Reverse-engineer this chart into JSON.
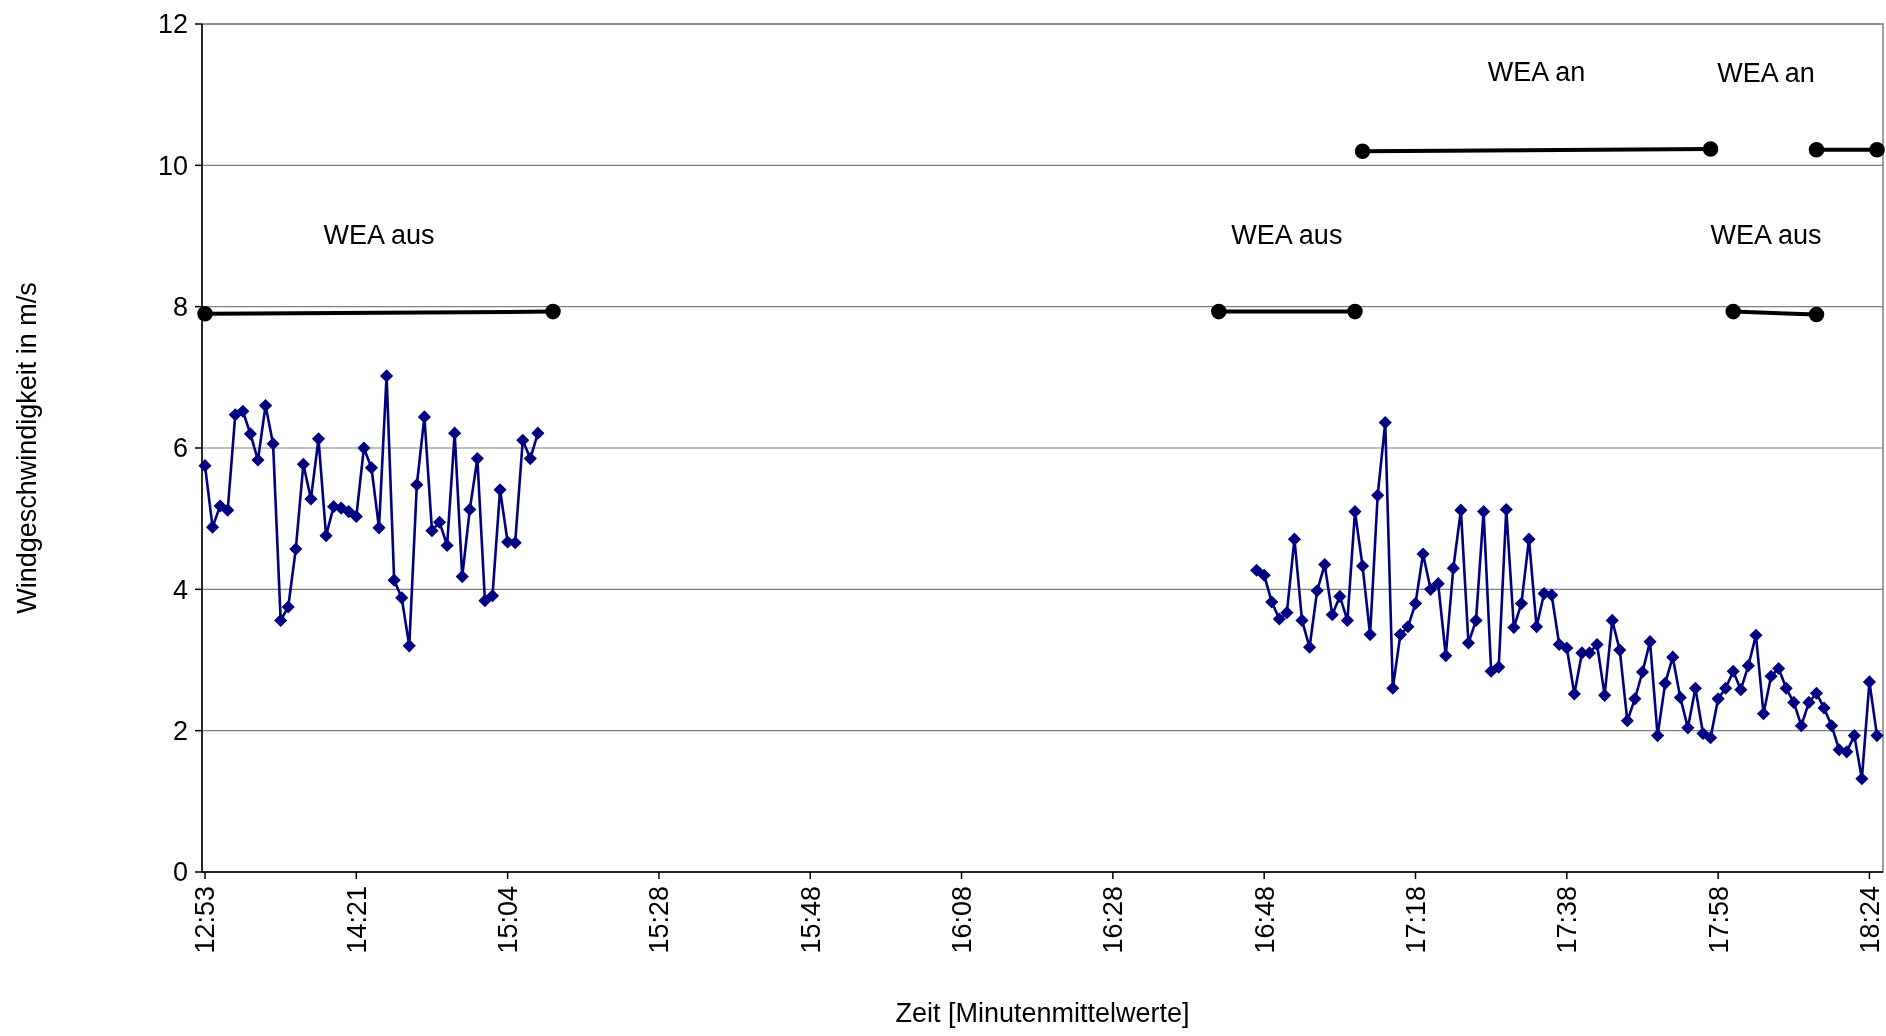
{
  "chart_data": {
    "type": "line",
    "xlabel": "Zeit [Minutenmittelwerte]",
    "ylabel": "Windgeschwindigkeit in m/s",
    "ylim": [
      0,
      12
    ],
    "yticks": [
      0,
      2,
      4,
      6,
      8,
      10,
      12
    ],
    "grid": "y",
    "categories": [
      "12:53",
      null,
      null,
      null,
      null,
      null,
      null,
      null,
      null,
      null,
      null,
      null,
      null,
      null,
      null,
      null,
      null,
      null,
      null,
      null,
      "14:21",
      null,
      null,
      null,
      null,
      null,
      null,
      null,
      null,
      null,
      null,
      null,
      null,
      null,
      null,
      null,
      null,
      null,
      null,
      null,
      "15:04",
      null,
      null,
      null,
      null,
      null,
      null,
      null,
      null,
      null,
      null,
      null,
      null,
      null,
      null,
      null,
      null,
      null,
      null,
      null,
      "15:28",
      null,
      null,
      null,
      null,
      null,
      null,
      null,
      null,
      null,
      null,
      null,
      null,
      null,
      null,
      null,
      null,
      null,
      null,
      null,
      "15:48",
      null,
      null,
      null,
      null,
      null,
      null,
      null,
      null,
      null,
      null,
      null,
      null,
      null,
      null,
      null,
      null,
      null,
      null,
      null,
      "16:08",
      null,
      null,
      null,
      null,
      null,
      null,
      null,
      null,
      null,
      null,
      null,
      null,
      null,
      null,
      null,
      null,
      null,
      null,
      null,
      "16:28",
      null,
      null,
      null,
      null,
      null,
      null,
      null,
      null,
      null,
      null,
      null,
      null,
      null,
      null,
      null,
      null,
      null,
      null,
      null,
      "16:48",
      null,
      null,
      null,
      null,
      null,
      null,
      null,
      null,
      null,
      null,
      null,
      null,
      null,
      null,
      null,
      null,
      null,
      null,
      null,
      "17:18",
      null,
      null,
      null,
      null,
      null,
      null,
      null,
      null,
      null,
      null,
      null,
      null,
      null,
      null,
      null,
      null,
      null,
      null,
      null,
      "17:38",
      null,
      null,
      null,
      null,
      null,
      null,
      null,
      null,
      null,
      null,
      null,
      null,
      null,
      null,
      null,
      null,
      null,
      null,
      null,
      "17:58",
      null,
      null,
      null,
      null,
      null,
      null,
      null,
      null,
      null,
      null,
      null,
      null,
      null,
      null,
      null,
      null,
      null,
      null,
      null,
      "18:24",
      null
    ],
    "series": [
      {
        "color": "#000080",
        "marker": "diamond",
        "values": [
          5.75,
          4.88,
          5.18,
          5.12,
          6.47,
          6.52,
          6.2,
          5.83,
          6.6,
          6.06,
          3.56,
          3.75,
          4.57,
          5.77,
          5.28,
          6.13,
          4.76,
          5.17,
          5.15,
          5.1,
          5.03,
          6.0,
          5.72,
          4.87,
          7.02,
          4.13,
          3.88,
          3.2,
          5.48,
          6.44,
          4.83,
          4.95,
          4.62,
          6.21,
          4.18,
          5.13,
          5.85,
          3.84,
          3.91,
          5.41,
          4.67,
          4.66,
          6.11,
          5.85,
          6.21,
          null,
          null,
          null,
          null,
          null,
          null,
          null,
          null,
          null,
          null,
          null,
          null,
          null,
          null,
          null,
          null,
          null,
          null,
          null,
          null,
          null,
          null,
          null,
          null,
          null,
          null,
          null,
          null,
          null,
          null,
          null,
          null,
          null,
          null,
          null,
          null,
          null,
          null,
          null,
          null,
          null,
          null,
          null,
          null,
          null,
          null,
          null,
          null,
          null,
          null,
          null,
          null,
          null,
          null,
          null,
          null,
          null,
          null,
          null,
          null,
          null,
          null,
          null,
          null,
          null,
          null,
          null,
          null,
          null,
          null,
          null,
          null,
          null,
          null,
          null,
          null,
          null,
          null,
          null,
          null,
          null,
          null,
          null,
          null,
          null,
          null,
          null,
          null,
          null,
          null,
          null,
          null,
          null,
          null,
          null,
          null,
          null,
          null,
          null,
          null,
          null,
          null,
          null,
          null,
          null,
          null,
          null,
          null,
          null,
          null,
          null,
          null,
          null,
          null,
          null,
          null,
          null,
          null,
          null,
          null,
          null,
          null,
          null,
          null,
          null,
          null,
          null,
          null,
          null,
          null,
          null,
          null,
          null,
          null,
          null,
          null,
          null,
          null,
          null,
          null,
          null,
          null,
          null,
          null,
          null,
          null,
          null,
          null,
          null,
          null,
          null,
          null,
          null,
          null,
          null,
          null,
          null,
          null,
          null,
          null,
          null,
          null,
          null,
          null,
          null,
          null,
          null,
          null,
          null,
          null,
          null,
          null,
          null,
          null,
          null,
          null,
          null
        ]
      },
      {
        "color": "#000080",
        "marker": "diamond",
        "values": [
          null,
          null,
          null,
          null,
          null,
          null,
          null,
          null,
          null,
          null,
          null,
          null,
          null,
          null,
          null,
          null,
          null,
          null,
          null,
          null,
          null,
          null,
          null,
          null,
          null,
          null,
          null,
          null,
          null,
          null,
          null,
          null,
          null,
          null,
          null,
          null,
          null,
          null,
          null,
          null,
          null,
          null,
          null,
          null,
          null,
          null,
          null,
          null,
          null,
          null,
          null,
          null,
          null,
          null,
          null,
          null,
          null,
          null,
          null,
          null,
          null,
          null,
          null,
          null,
          null,
          null,
          null,
          null,
          null,
          null,
          null,
          null,
          null,
          null,
          null,
          null,
          null,
          null,
          null,
          null,
          null,
          null,
          null,
          null,
          null,
          null,
          null,
          null,
          null,
          null,
          null,
          null,
          null,
          null,
          null,
          null,
          null,
          null,
          null,
          null,
          null,
          null,
          null,
          null,
          null,
          null,
          null,
          null,
          null,
          null,
          null,
          null,
          null,
          null,
          null,
          null,
          null,
          null,
          null,
          null,
          null,
          null,
          null,
          null,
          null,
          null,
          null,
          null,
          null,
          null,
          null,
          null,
          null,
          null,
          null,
          null,
          null,
          null,
          null,
          4.27,
          4.2,
          3.82,
          3.58,
          3.67,
          4.71,
          3.56,
          3.18,
          3.98,
          4.35,
          3.64,
          3.9,
          3.56,
          5.1,
          4.33,
          3.36,
          5.33,
          6.36,
          2.6,
          3.36,
          3.47,
          3.8,
          4.5,
          4.0,
          4.08,
          3.06,
          4.3,
          5.12,
          3.24,
          3.56,
          5.1,
          2.84,
          2.9,
          5.13,
          3.46,
          3.8,
          4.71,
          3.47,
          3.94,
          3.92,
          3.22,
          3.17,
          2.52,
          3.1,
          3.1,
          3.22,
          2.5,
          3.56,
          3.14,
          2.14,
          2.45,
          2.83,
          3.26,
          1.93,
          2.67,
          3.04,
          2.47,
          2.04,
          2.6,
          1.96,
          1.9,
          2.45,
          2.6,
          2.84,
          2.58,
          2.92,
          3.35,
          2.24,
          2.77,
          2.88,
          2.6,
          2.4,
          2.07,
          2.4,
          2.53,
          2.32,
          2.07,
          1.73,
          1.7,
          1.93,
          1.32,
          2.69,
          1.93
        ]
      },
      {
        "name": "WEA aus",
        "color": "#000000",
        "marker": "circle",
        "values": [
          7.9,
          null,
          null,
          null,
          null,
          null,
          null,
          null,
          null,
          null,
          null,
          null,
          null,
          null,
          null,
          null,
          null,
          null,
          null,
          null,
          null,
          null,
          null,
          null,
          null,
          null,
          null,
          null,
          null,
          null,
          null,
          null,
          null,
          null,
          null,
          null,
          null,
          null,
          null,
          null,
          null,
          null,
          null,
          null,
          null,
          null,
          7.93,
          null,
          null,
          null,
          null,
          null,
          null,
          null,
          null,
          null,
          null,
          null,
          null,
          null,
          null,
          null,
          null,
          null,
          null,
          null,
          null,
          null,
          null,
          null,
          null,
          null,
          null,
          null,
          null,
          null,
          null,
          null,
          null,
          null,
          null,
          null,
          null,
          null,
          null,
          null,
          null,
          null,
          null,
          null,
          null,
          null,
          null,
          null,
          null,
          null,
          null,
          null,
          null,
          null,
          null,
          null,
          null,
          null,
          null,
          null,
          null,
          null,
          null,
          null,
          null,
          null,
          null,
          null,
          null,
          null,
          null,
          null,
          null,
          null,
          null,
          null,
          null,
          null,
          null,
          null,
          null,
          null,
          null,
          null,
          null,
          null,
          null,
          null,
          null,
          null,
          null,
          null,
          null,
          null,
          null,
          null,
          null,
          null,
          null,
          null,
          null,
          null,
          null,
          null,
          null,
          null,
          null,
          null,
          null,
          null,
          null,
          null,
          null,
          null,
          null,
          null,
          null,
          null,
          null,
          null,
          null,
          null,
          null,
          null,
          null,
          null,
          null,
          null,
          null,
          null,
          null,
          null,
          null,
          null,
          null,
          null,
          null,
          null,
          null,
          null,
          null,
          null,
          null,
          null,
          null,
          null,
          null,
          null,
          null,
          null,
          null,
          null,
          null,
          null,
          null,
          null,
          null,
          null,
          null,
          null,
          null,
          null,
          null,
          null,
          null,
          null,
          null,
          null,
          null,
          null,
          null,
          null,
          null,
          null,
          null,
          null
        ]
      },
      {
        "name": "WEA aus",
        "color": "#000000",
        "marker": "circle",
        "values": [
          null,
          null,
          null,
          null,
          null,
          null,
          null,
          null,
          null,
          null,
          null,
          null,
          null,
          null,
          null,
          null,
          null,
          null,
          null,
          null,
          null,
          null,
          null,
          null,
          null,
          null,
          null,
          null,
          null,
          null,
          null,
          null,
          null,
          null,
          null,
          null,
          null,
          null,
          null,
          null,
          null,
          null,
          null,
          null,
          null,
          null,
          null,
          null,
          null,
          null,
          null,
          null,
          null,
          null,
          null,
          null,
          null,
          null,
          null,
          null,
          null,
          null,
          null,
          null,
          null,
          null,
          null,
          null,
          null,
          null,
          null,
          null,
          null,
          null,
          null,
          null,
          null,
          null,
          null,
          null,
          null,
          null,
          null,
          null,
          null,
          null,
          null,
          null,
          null,
          null,
          null,
          null,
          null,
          null,
          null,
          null,
          null,
          null,
          null,
          null,
          null,
          null,
          null,
          null,
          null,
          null,
          null,
          null,
          null,
          null,
          null,
          null,
          null,
          null,
          null,
          null,
          null,
          null,
          null,
          null,
          null,
          null,
          null,
          null,
          null,
          null,
          null,
          null,
          null,
          null,
          null,
          null,
          null,
          null,
          7.93,
          null,
          null,
          null,
          null,
          null,
          null,
          null,
          null,
          null,
          null,
          null,
          null,
          null,
          null,
          null,
          null,
          null,
          7.93,
          null,
          null,
          null,
          null,
          null,
          null,
          null,
          null,
          null,
          null,
          null,
          null,
          null,
          null,
          null,
          null,
          null,
          null,
          null,
          null,
          null,
          null,
          null,
          null,
          null,
          null,
          null,
          null,
          null,
          null,
          null,
          null,
          null,
          null,
          null,
          null,
          null,
          null,
          null,
          null,
          null,
          null,
          null,
          null,
          null,
          null,
          null,
          null,
          null,
          null,
          null,
          null,
          null,
          null,
          null,
          null,
          null,
          null,
          null,
          null,
          null,
          null,
          null,
          null,
          null,
          null,
          null,
          null,
          null
        ]
      },
      {
        "name": "WEA an",
        "color": "#000000",
        "marker": "circle",
        "values": [
          null,
          null,
          null,
          null,
          null,
          null,
          null,
          null,
          null,
          null,
          null,
          null,
          null,
          null,
          null,
          null,
          null,
          null,
          null,
          null,
          null,
          null,
          null,
          null,
          null,
          null,
          null,
          null,
          null,
          null,
          null,
          null,
          null,
          null,
          null,
          null,
          null,
          null,
          null,
          null,
          null,
          null,
          null,
          null,
          null,
          null,
          null,
          null,
          null,
          null,
          null,
          null,
          null,
          null,
          null,
          null,
          null,
          null,
          null,
          null,
          null,
          null,
          null,
          null,
          null,
          null,
          null,
          null,
          null,
          null,
          null,
          null,
          null,
          null,
          null,
          null,
          null,
          null,
          null,
          null,
          null,
          null,
          null,
          null,
          null,
          null,
          null,
          null,
          null,
          null,
          null,
          null,
          null,
          null,
          null,
          null,
          null,
          null,
          null,
          null,
          null,
          null,
          null,
          null,
          null,
          null,
          null,
          null,
          null,
          null,
          null,
          null,
          null,
          null,
          null,
          null,
          null,
          null,
          null,
          null,
          null,
          null,
          null,
          null,
          null,
          null,
          null,
          null,
          null,
          null,
          null,
          null,
          null,
          null,
          null,
          null,
          null,
          null,
          null,
          null,
          null,
          null,
          null,
          null,
          null,
          null,
          null,
          null,
          null,
          null,
          null,
          null,
          null,
          10.2,
          null,
          null,
          null,
          null,
          null,
          null,
          null,
          null,
          null,
          null,
          null,
          null,
          null,
          null,
          null,
          null,
          null,
          null,
          null,
          null,
          null,
          null,
          null,
          null,
          null,
          null,
          null,
          null,
          null,
          null,
          null,
          null,
          null,
          null,
          null,
          null,
          null,
          null,
          null,
          null,
          null,
          null,
          null,
          null,
          null,
          10.23,
          null,
          null,
          null,
          null,
          null,
          null,
          null,
          null,
          null,
          null,
          null,
          null,
          null,
          null,
          null,
          null,
          null,
          null,
          null,
          null,
          null,
          null
        ]
      },
      {
        "name": "WEA aus",
        "color": "#000000",
        "marker": "circle",
        "values": [
          null,
          null,
          null,
          null,
          null,
          null,
          null,
          null,
          null,
          null,
          null,
          null,
          null,
          null,
          null,
          null,
          null,
          null,
          null,
          null,
          null,
          null,
          null,
          null,
          null,
          null,
          null,
          null,
          null,
          null,
          null,
          null,
          null,
          null,
          null,
          null,
          null,
          null,
          null,
          null,
          null,
          null,
          null,
          null,
          null,
          null,
          null,
          null,
          null,
          null,
          null,
          null,
          null,
          null,
          null,
          null,
          null,
          null,
          null,
          null,
          null,
          null,
          null,
          null,
          null,
          null,
          null,
          null,
          null,
          null,
          null,
          null,
          null,
          null,
          null,
          null,
          null,
          null,
          null,
          null,
          null,
          null,
          null,
          null,
          null,
          null,
          null,
          null,
          null,
          null,
          null,
          null,
          null,
          null,
          null,
          null,
          null,
          null,
          null,
          null,
          null,
          null,
          null,
          null,
          null,
          null,
          null,
          null,
          null,
          null,
          null,
          null,
          null,
          null,
          null,
          null,
          null,
          null,
          null,
          null,
          null,
          null,
          null,
          null,
          null,
          null,
          null,
          null,
          null,
          null,
          null,
          null,
          null,
          null,
          null,
          null,
          null,
          null,
          null,
          null,
          null,
          null,
          null,
          null,
          null,
          null,
          null,
          null,
          null,
          null,
          null,
          null,
          null,
          null,
          null,
          null,
          null,
          null,
          null,
          null,
          null,
          null,
          null,
          null,
          null,
          null,
          null,
          null,
          null,
          null,
          null,
          null,
          null,
          null,
          null,
          null,
          null,
          null,
          null,
          null,
          null,
          null,
          null,
          null,
          null,
          null,
          null,
          null,
          null,
          null,
          null,
          null,
          null,
          null,
          null,
          null,
          null,
          null,
          null,
          null,
          null,
          null,
          7.93,
          null,
          null,
          null,
          null,
          null,
          null,
          null,
          null,
          null,
          null,
          7.89,
          null,
          null,
          null,
          null,
          null,
          null,
          null,
          null
        ]
      },
      {
        "name": "WEA an",
        "color": "#000000",
        "marker": "circle",
        "values": [
          null,
          null,
          null,
          null,
          null,
          null,
          null,
          null,
          null,
          null,
          null,
          null,
          null,
          null,
          null,
          null,
          null,
          null,
          null,
          null,
          null,
          null,
          null,
          null,
          null,
          null,
          null,
          null,
          null,
          null,
          null,
          null,
          null,
          null,
          null,
          null,
          null,
          null,
          null,
          null,
          null,
          null,
          null,
          null,
          null,
          null,
          null,
          null,
          null,
          null,
          null,
          null,
          null,
          null,
          null,
          null,
          null,
          null,
          null,
          null,
          null,
          null,
          null,
          null,
          null,
          null,
          null,
          null,
          null,
          null,
          null,
          null,
          null,
          null,
          null,
          null,
          null,
          null,
          null,
          null,
          null,
          null,
          null,
          null,
          null,
          null,
          null,
          null,
          null,
          null,
          null,
          null,
          null,
          null,
          null,
          null,
          null,
          null,
          null,
          null,
          null,
          null,
          null,
          null,
          null,
          null,
          null,
          null,
          null,
          null,
          null,
          null,
          null,
          null,
          null,
          null,
          null,
          null,
          null,
          null,
          null,
          null,
          null,
          null,
          null,
          null,
          null,
          null,
          null,
          null,
          null,
          null,
          null,
          null,
          null,
          null,
          null,
          null,
          null,
          null,
          null,
          null,
          null,
          null,
          null,
          null,
          null,
          null,
          null,
          null,
          null,
          null,
          null,
          null,
          null,
          null,
          null,
          null,
          null,
          null,
          null,
          null,
          null,
          null,
          null,
          null,
          null,
          null,
          null,
          null,
          null,
          null,
          null,
          null,
          null,
          null,
          null,
          null,
          null,
          null,
          null,
          null,
          null,
          null,
          null,
          null,
          null,
          null,
          null,
          null,
          null,
          null,
          null,
          null,
          null,
          null,
          null,
          null,
          null,
          null,
          null,
          null,
          null,
          null,
          null,
          null,
          null,
          null,
          null,
          null,
          null,
          null,
          null,
          10.22,
          null,
          null,
          null,
          null,
          null,
          null,
          null,
          10.22
        ]
      }
    ]
  }
}
